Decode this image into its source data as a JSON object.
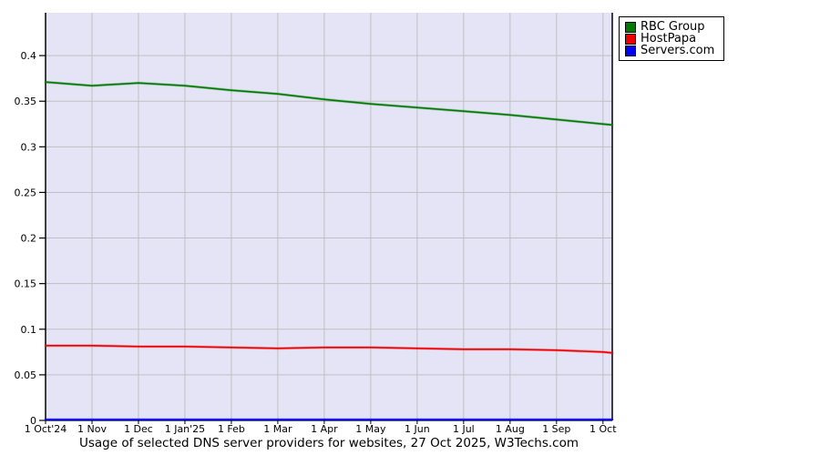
{
  "title": "Usage of selected DNS server providers for websites, 27 Oct 2025, W3Techs.com",
  "chart_data": {
    "type": "line",
    "title": "Usage of selected DNS server providers for websites, 27 Oct 2025, W3Techs.com",
    "x_tick_labels": [
      "1 Oct'24",
      "1 Nov",
      "1 Dec",
      "1 Jan'25",
      "1 Feb",
      "1 Mar",
      "1 Apr",
      "1 May",
      "1 Jun",
      "1 Jul",
      "1 Aug",
      "1 Sep",
      "1 Oct"
    ],
    "x_points": [
      0,
      1,
      2,
      3,
      4,
      5,
      6,
      7,
      8,
      9,
      10,
      11,
      12,
      12.2
    ],
    "series": [
      {
        "name": "RBC Group",
        "color": "#007A00",
        "values": [
          0.371,
          0.367,
          0.37,
          0.367,
          0.362,
          0.358,
          0.352,
          0.347,
          0.343,
          0.339,
          0.335,
          0.33,
          0.325,
          0.324
        ]
      },
      {
        "name": "HostPapa",
        "color": "#EE0000",
        "values": [
          0.082,
          0.082,
          0.081,
          0.081,
          0.08,
          0.079,
          0.08,
          0.08,
          0.079,
          0.078,
          0.078,
          0.077,
          0.075,
          0.074
        ]
      },
      {
        "name": "Servers.com",
        "color": "#0000FF",
        "values": [
          0.001,
          0.001,
          0.001,
          0.001,
          0.001,
          0.001,
          0.001,
          0.001,
          0.001,
          0.001,
          0.001,
          0.001,
          0.001,
          0.001
        ]
      }
    ],
    "yticks": [
      0,
      0.05,
      0.1,
      0.15,
      0.2,
      0.25,
      0.3,
      0.35,
      0.4
    ],
    "y_tick_labels": [
      "0",
      "0.05",
      "0.1",
      "0.15",
      "0.2",
      "0.25",
      "0.3",
      "0.35",
      "0.4"
    ],
    "ylim": [
      0,
      0.447
    ],
    "grid": true,
    "legend_position": "outside-top-right",
    "colors": {
      "plot_bg": "#E4E4F6",
      "grid": "#C0C0C0",
      "axis": "#000000",
      "text": "#000000"
    }
  }
}
